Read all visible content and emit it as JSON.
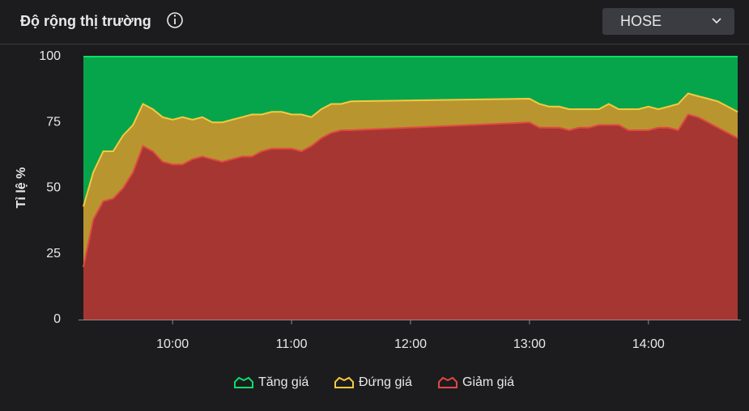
{
  "header": {
    "title": "Độ rộng thị trường",
    "dropdown": "HOSE"
  },
  "chart_data": {
    "type": "area",
    "stacked": true,
    "y_label": "Tỉ lệ %",
    "x": [
      "09:15",
      "09:20",
      "09:25",
      "09:30",
      "09:35",
      "09:40",
      "09:45",
      "09:50",
      "09:55",
      "10:00",
      "10:05",
      "10:10",
      "10:15",
      "10:20",
      "10:25",
      "10:30",
      "10:35",
      "10:40",
      "10:45",
      "10:50",
      "10:55",
      "11:00",
      "11:05",
      "11:10",
      "11:15",
      "11:20",
      "11:25",
      "11:30",
      "13:00",
      "13:05",
      "13:10",
      "13:15",
      "13:20",
      "13:25",
      "13:30",
      "13:35",
      "13:40",
      "13:45",
      "13:50",
      "13:55",
      "14:00",
      "14:05",
      "14:10",
      "14:15",
      "14:20",
      "14:25",
      "14:30",
      "14:35",
      "14:40",
      "14:45"
    ],
    "xlim": [
      "09:15",
      "14:45"
    ],
    "xticks": [
      "10:00",
      "11:00",
      "12:00",
      "13:00",
      "14:00"
    ],
    "ylim": [
      0,
      100
    ],
    "yticks": [
      0,
      25,
      50,
      75,
      100
    ],
    "series": [
      {
        "name": "Tăng giá",
        "color": "#07a54b",
        "values": [
          57,
          44,
          36,
          36,
          30,
          26,
          18,
          20,
          23,
          24,
          23,
          24,
          23,
          25,
          25,
          24,
          23,
          22,
          22,
          21,
          21,
          22,
          22,
          23,
          20,
          18,
          18,
          17,
          16,
          18,
          19,
          19,
          20,
          20,
          20,
          20,
          18,
          20,
          20,
          20,
          19,
          20,
          19,
          18,
          14,
          15,
          16,
          17,
          19,
          21
        ]
      },
      {
        "name": "Đứng giá",
        "color": "#b8952f",
        "values": [
          23,
          18,
          19,
          18,
          20,
          18,
          16,
          16,
          17,
          17,
          18,
          15,
          15,
          14,
          15,
          15,
          15,
          16,
          14,
          14,
          14,
          13,
          14,
          11,
          11,
          11,
          10,
          11,
          9,
          9,
          8,
          8,
          8,
          7,
          7,
          6,
          8,
          6,
          8,
          8,
          9,
          7,
          8,
          10,
          8,
          8,
          9,
          10,
          10,
          10
        ]
      },
      {
        "name": "Giảm giá",
        "color": "#a63631",
        "values": [
          20,
          38,
          45,
          46,
          50,
          56,
          66,
          64,
          60,
          59,
          59,
          61,
          62,
          61,
          60,
          61,
          62,
          62,
          64,
          65,
          65,
          65,
          64,
          66,
          69,
          71,
          72,
          72,
          75,
          73,
          73,
          73,
          72,
          73,
          73,
          74,
          74,
          74,
          72,
          72,
          72,
          73,
          73,
          72,
          78,
          77,
          75,
          73,
          71,
          69
        ]
      }
    ]
  }
}
